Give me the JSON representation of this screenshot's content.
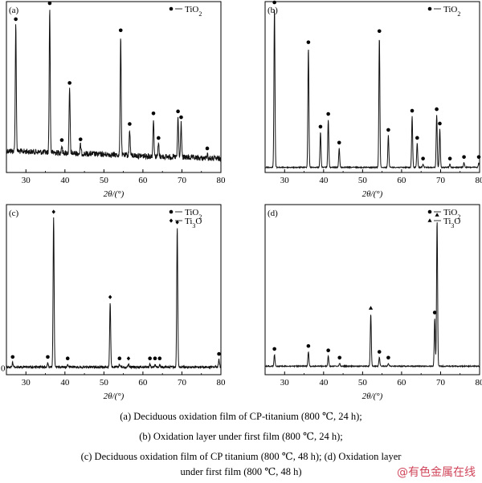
{
  "chart_data": [
    {
      "type": "line",
      "panel_label": "(a)",
      "xlabel": "2θ/(°)",
      "xlim": [
        25,
        80
      ],
      "xticks": [
        "30",
        "40",
        "50",
        "60",
        "70",
        "80"
      ],
      "legend": [
        {
          "marker": "circle",
          "name": "TiO2"
        }
      ],
      "noise": "high",
      "peaks": [
        {
          "x": 27.4,
          "h": 0.88,
          "phase": "TiO2"
        },
        {
          "x": 36.1,
          "h": 1.0,
          "phase": "TiO2"
        },
        {
          "x": 39.2,
          "h": 0.05,
          "phase": "TiO2"
        },
        {
          "x": 41.2,
          "h": 0.45,
          "phase": "TiO2"
        },
        {
          "x": 44.0,
          "h": 0.06,
          "phase": "TiO2"
        },
        {
          "x": 54.3,
          "h": 0.83,
          "phase": "TiO2"
        },
        {
          "x": 56.6,
          "h": 0.18,
          "phase": "TiO2"
        },
        {
          "x": 62.7,
          "h": 0.26,
          "phase": "TiO2"
        },
        {
          "x": 64.0,
          "h": 0.09,
          "phase": "TiO2"
        },
        {
          "x": 69.0,
          "h": 0.28,
          "phase": "TiO2"
        },
        {
          "x": 69.8,
          "h": 0.24,
          "phase": "TiO2"
        },
        {
          "x": 76.5,
          "h": 0.03,
          "phase": "TiO2"
        }
      ]
    },
    {
      "type": "line",
      "panel_label": "(b)",
      "xlabel": "2θ/(°)",
      "xlim": [
        25,
        80
      ],
      "xticks": [
        "30",
        "40",
        "50",
        "60",
        "70",
        "80"
      ],
      "legend": [
        {
          "marker": "circle",
          "name": "TiO2"
        }
      ],
      "noise": "low",
      "peaks": [
        {
          "x": 27.4,
          "h": 1.0,
          "phase": "TiO2"
        },
        {
          "x": 36.1,
          "h": 0.75,
          "phase": "TiO2"
        },
        {
          "x": 39.2,
          "h": 0.22,
          "phase": "TiO2"
        },
        {
          "x": 41.2,
          "h": 0.3,
          "phase": "TiO2"
        },
        {
          "x": 44.0,
          "h": 0.12,
          "phase": "TiO2"
        },
        {
          "x": 54.3,
          "h": 0.82,
          "phase": "TiO2"
        },
        {
          "x": 56.6,
          "h": 0.2,
          "phase": "TiO2"
        },
        {
          "x": 62.7,
          "h": 0.32,
          "phase": "TiO2"
        },
        {
          "x": 64.0,
          "h": 0.15,
          "phase": "TiO2"
        },
        {
          "x": 65.5,
          "h": 0.02,
          "phase": "TiO2"
        },
        {
          "x": 69.0,
          "h": 0.33,
          "phase": "TiO2"
        },
        {
          "x": 69.8,
          "h": 0.24,
          "phase": "TiO2"
        },
        {
          "x": 72.4,
          "h": 0.02,
          "phase": "TiO2"
        },
        {
          "x": 76.0,
          "h": 0.03,
          "phase": "TiO2"
        },
        {
          "x": 79.8,
          "h": 0.03,
          "phase": "TiO2"
        }
      ]
    },
    {
      "type": "line",
      "panel_label": "(c)",
      "xlabel": "2θ/(°)",
      "xlim": [
        25,
        80
      ],
      "xticks": [
        "30",
        "40",
        "50",
        "60",
        "70",
        "80"
      ],
      "left_label": "0",
      "legend": [
        {
          "marker": "circle",
          "name": "TiO2"
        },
        {
          "marker": "diamond",
          "name": "Ti3O"
        }
      ],
      "noise": "medium",
      "peaks": [
        {
          "x": 26.6,
          "h": 0.03,
          "phase": "TiO2"
        },
        {
          "x": 35.6,
          "h": 0.03,
          "phase": "TiO2"
        },
        {
          "x": 37.1,
          "h": 1.0,
          "phase": "Ti3O"
        },
        {
          "x": 40.7,
          "h": 0.02,
          "phase": "TiO2"
        },
        {
          "x": 51.6,
          "h": 0.43,
          "phase": "Ti3O"
        },
        {
          "x": 54.0,
          "h": 0.02,
          "phase": "TiO2"
        },
        {
          "x": 56.3,
          "h": 0.02,
          "phase": "Ti3O"
        },
        {
          "x": 61.8,
          "h": 0.02,
          "phase": "TiO2"
        },
        {
          "x": 63.1,
          "h": 0.02,
          "phase": "TiO2"
        },
        {
          "x": 64.3,
          "h": 0.02,
          "phase": "TiO2"
        },
        {
          "x": 68.8,
          "h": 0.93,
          "phase": "Ti3O"
        },
        {
          "x": 79.5,
          "h": 0.05,
          "phase": "TiO2"
        }
      ]
    },
    {
      "type": "line",
      "panel_label": "(d)",
      "xlabel": "2θ/(°)",
      "xlim": [
        25,
        80
      ],
      "xticks": [
        "30",
        "40",
        "50",
        "60",
        "70",
        "80"
      ],
      "legend": [
        {
          "marker": "circle",
          "name": "TiO2"
        },
        {
          "marker": "triangle",
          "name": "Ti3O"
        }
      ],
      "noise": "low",
      "peaks": [
        {
          "x": 27.4,
          "h": 0.08,
          "phase": "TiO2"
        },
        {
          "x": 36.1,
          "h": 0.1,
          "phase": "TiO2"
        },
        {
          "x": 41.2,
          "h": 0.07,
          "phase": "TiO2"
        },
        {
          "x": 44.1,
          "h": 0.02,
          "phase": "TiO2"
        },
        {
          "x": 52.1,
          "h": 0.36,
          "phase": "Ti3O"
        },
        {
          "x": 54.3,
          "h": 0.06,
          "phase": "TiO2"
        },
        {
          "x": 56.6,
          "h": 0.02,
          "phase": "TiO2"
        },
        {
          "x": 68.5,
          "h": 0.33,
          "phase": "TiO2"
        },
        {
          "x": 69.1,
          "h": 1.0,
          "phase": "Ti3O"
        }
      ]
    }
  ],
  "captions": {
    "line1": "(a) Deciduous oxidation film of CP-titanium (800 ℃, 24 h);",
    "line2": "(b) Oxidation layer under first film (800 ℃, 24 h);",
    "line3": "(c) Deciduous oxidation film of CP titanium (800 ℃, 48 h); (d) Oxidation layer",
    "line4": "under first film (800 ℃, 48 h)"
  },
  "watermark": "@有色金属在线",
  "colors": {
    "line": "#111111",
    "watermark": "#d0455a"
  }
}
